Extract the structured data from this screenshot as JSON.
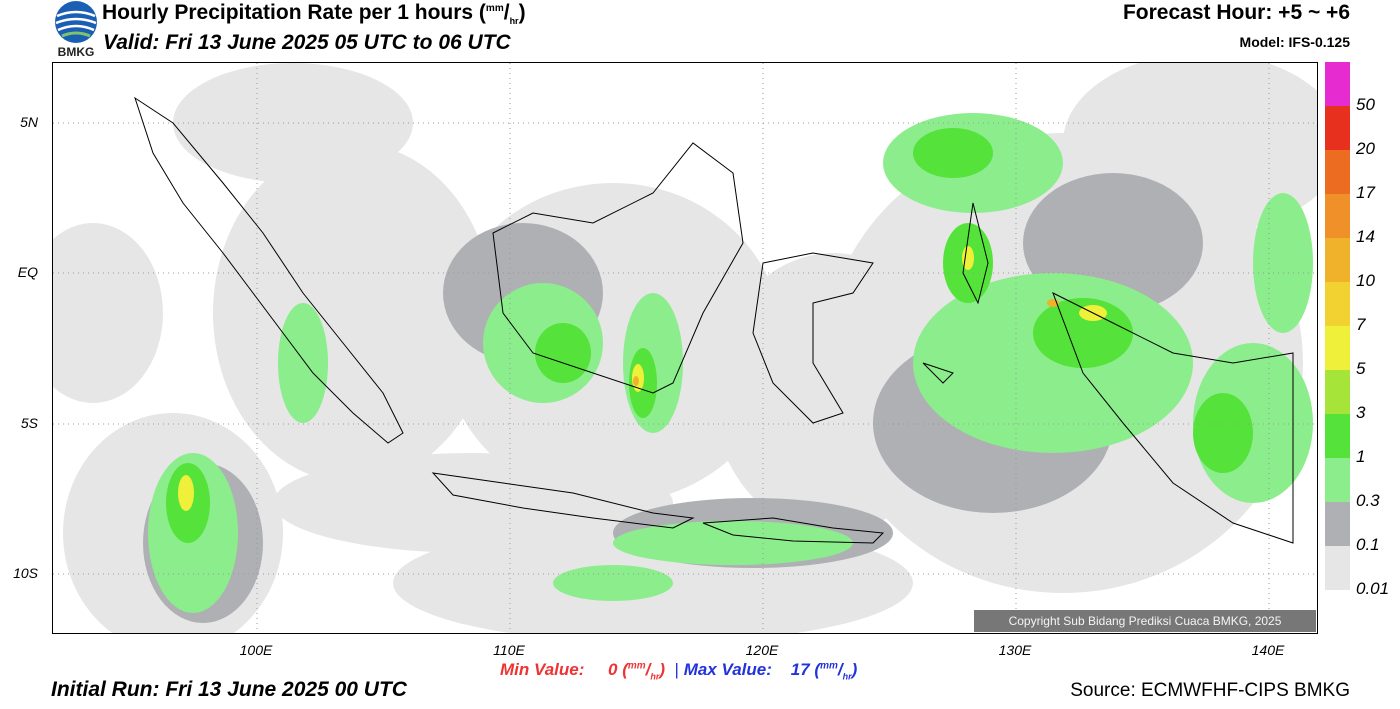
{
  "header": {
    "title": "Hourly Precipitation Rate per 1 hours",
    "title_unit_num": "mm",
    "title_unit_den": "hr",
    "valid": "Valid: Fri 13 June 2025 05 UTC to 06 UTC",
    "forecast_hour": "Forecast Hour: +5 ~ +6",
    "model": "Model: IFS-0.125",
    "logo_text": "BMKG"
  },
  "map": {
    "lat_labels": [
      "5N",
      "EQ",
      "5S",
      "10S"
    ],
    "lon_labels": [
      "100E",
      "110E",
      "120E",
      "130E",
      "140E"
    ],
    "copyright": "Copyright Sub Bidang Prediksi Cuaca BMKG, 2025"
  },
  "colorbar": {
    "levels": [
      "0.01",
      "0.1",
      "0.3",
      "1",
      "3",
      "5",
      "7",
      "10",
      "14",
      "17",
      "20",
      "50"
    ],
    "colors": [
      "#e6e6e6",
      "#aeb0b4",
      "#8ced8c",
      "#55e23a",
      "#a6e43a",
      "#eef03a",
      "#f2d230",
      "#f0b22a",
      "#ef9128",
      "#ec6c22",
      "#e8301e",
      "#e62bd0"
    ]
  },
  "footer": {
    "min_label": "Min Value:",
    "min_value": "0",
    "max_label": "Max Value:",
    "max_value": "17",
    "separator": "|",
    "unit_num": "mm",
    "unit_den": "hr",
    "initial_run": "Initial Run: Fri 13 June 2025 00 UTC",
    "source": "Source: ECMWFHF-CIPS BMKG"
  }
}
